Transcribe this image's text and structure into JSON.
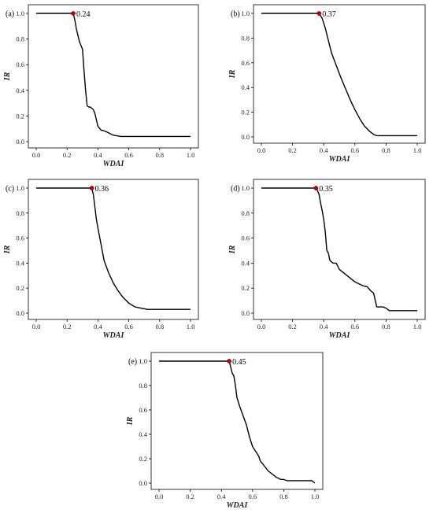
{
  "chart_data": [
    {
      "type": "line",
      "panel": "(a)",
      "xlabel": "WDAI",
      "ylabel": "IR",
      "xlim": [
        0,
        1
      ],
      "ylim": [
        0,
        1
      ],
      "xticks": [
        "0.0",
        "0.2",
        "0.4",
        "0.6",
        "0.8",
        "1.0"
      ],
      "yticks": [
        "0.0",
        "0.2",
        "0.4",
        "0.6",
        "0.8",
        "1.0"
      ],
      "threshold": {
        "x": 0.24,
        "y": 1.0,
        "label": "0.24"
      },
      "x": [
        0.0,
        0.24,
        0.25,
        0.26,
        0.28,
        0.3,
        0.31,
        0.32,
        0.33,
        0.34,
        0.35,
        0.37,
        0.38,
        0.4,
        0.42,
        0.45,
        0.5,
        0.55,
        0.57,
        0.6,
        0.65,
        0.7,
        0.8,
        0.9,
        1.0
      ],
      "y": [
        1.0,
        1.0,
        0.95,
        0.88,
        0.78,
        0.72,
        0.55,
        0.4,
        0.28,
        0.27,
        0.27,
        0.25,
        0.22,
        0.12,
        0.09,
        0.08,
        0.05,
        0.04,
        0.04,
        0.04,
        0.04,
        0.04,
        0.04,
        0.04,
        0.04
      ]
    },
    {
      "type": "line",
      "panel": "(b)",
      "xlabel": "WDAI",
      "ylabel": "IR",
      "xlim": [
        0,
        1
      ],
      "ylim": [
        0,
        1
      ],
      "xticks": [
        "0.0",
        "0.2",
        "0.4",
        "0.6",
        "0.8",
        "1.0"
      ],
      "yticks": [
        "0.0",
        "0.2",
        "0.4",
        "0.6",
        "0.8",
        "1.0"
      ],
      "threshold": {
        "x": 0.37,
        "y": 1.0,
        "label": "0.37"
      },
      "x": [
        0.0,
        0.37,
        0.39,
        0.41,
        0.43,
        0.45,
        0.48,
        0.51,
        0.54,
        0.57,
        0.6,
        0.63,
        0.66,
        0.69,
        0.72,
        0.74,
        0.76,
        0.8,
        0.9,
        1.0
      ],
      "y": [
        1.0,
        1.0,
        0.96,
        0.88,
        0.78,
        0.68,
        0.58,
        0.48,
        0.39,
        0.3,
        0.22,
        0.15,
        0.09,
        0.05,
        0.02,
        0.01,
        0.01,
        0.01,
        0.01,
        0.01
      ]
    },
    {
      "type": "line",
      "panel": "(c)",
      "xlabel": "WDAI",
      "ylabel": "IR",
      "xlim": [
        0,
        1
      ],
      "ylim": [
        0,
        1
      ],
      "xticks": [
        "0.0",
        "0.2",
        "0.4",
        "0.6",
        "0.8",
        "1.0"
      ],
      "yticks": [
        "0.0",
        "0.2",
        "0.4",
        "0.6",
        "0.8",
        "1.0"
      ],
      "threshold": {
        "x": 0.36,
        "y": 1.0,
        "label": "0.36"
      },
      "x": [
        0.0,
        0.36,
        0.37,
        0.38,
        0.39,
        0.4,
        0.42,
        0.44,
        0.47,
        0.5,
        0.53,
        0.56,
        0.6,
        0.64,
        0.68,
        0.72,
        0.75,
        0.8,
        0.9,
        1.0
      ],
      "y": [
        1.0,
        1.0,
        0.95,
        0.85,
        0.75,
        0.68,
        0.55,
        0.42,
        0.32,
        0.24,
        0.18,
        0.13,
        0.08,
        0.05,
        0.04,
        0.03,
        0.03,
        0.03,
        0.03,
        0.03
      ]
    },
    {
      "type": "line",
      "panel": "(d)",
      "xlabel": "WDAI",
      "ylabel": "IR",
      "xlim": [
        0,
        1
      ],
      "ylim": [
        0,
        1
      ],
      "xticks": [
        "0.0",
        "0.2",
        "0.4",
        "0.6",
        "0.8",
        "1.0"
      ],
      "yticks": [
        "0.0",
        "0.2",
        "0.4",
        "0.6",
        "0.8",
        "1.0"
      ],
      "threshold": {
        "x": 0.35,
        "y": 1.0,
        "label": "0.35"
      },
      "x": [
        0.0,
        0.35,
        0.36,
        0.37,
        0.38,
        0.39,
        0.4,
        0.41,
        0.42,
        0.43,
        0.44,
        0.46,
        0.48,
        0.5,
        0.55,
        0.58,
        0.6,
        0.65,
        0.68,
        0.7,
        0.72,
        0.74,
        0.75,
        0.78,
        0.8,
        0.82,
        0.85,
        0.9,
        1.0
      ],
      "y": [
        1.0,
        1.0,
        0.98,
        0.95,
        0.88,
        0.82,
        0.75,
        0.65,
        0.5,
        0.48,
        0.42,
        0.4,
        0.4,
        0.35,
        0.3,
        0.27,
        0.25,
        0.22,
        0.21,
        0.18,
        0.16,
        0.05,
        0.05,
        0.05,
        0.04,
        0.02,
        0.02,
        0.02,
        0.02
      ]
    },
    {
      "type": "line",
      "panel": "(e)",
      "xlabel": "WDAI",
      "ylabel": "IR",
      "xlim": [
        0,
        1
      ],
      "ylim": [
        0,
        1
      ],
      "xticks": [
        "0.0",
        "0.2",
        "0.4",
        "0.6",
        "0.8",
        "1.0"
      ],
      "yticks": [
        "0.0",
        "0.2",
        "0.4",
        "0.6",
        "0.8",
        "1.0"
      ],
      "threshold": {
        "x": 0.45,
        "y": 1.0,
        "label": "0.45"
      },
      "x": [
        0.0,
        0.45,
        0.46,
        0.47,
        0.48,
        0.49,
        0.5,
        0.52,
        0.54,
        0.56,
        0.58,
        0.6,
        0.62,
        0.64,
        0.65,
        0.67,
        0.7,
        0.72,
        0.75,
        0.78,
        0.8,
        0.82,
        0.85,
        0.9,
        0.95,
        0.98,
        1.0
      ],
      "y": [
        1.0,
        1.0,
        0.95,
        0.9,
        0.88,
        0.8,
        0.7,
        0.62,
        0.55,
        0.48,
        0.38,
        0.3,
        0.26,
        0.22,
        0.18,
        0.15,
        0.1,
        0.08,
        0.05,
        0.03,
        0.03,
        0.02,
        0.02,
        0.02,
        0.02,
        0.02,
        0.0
      ]
    }
  ]
}
